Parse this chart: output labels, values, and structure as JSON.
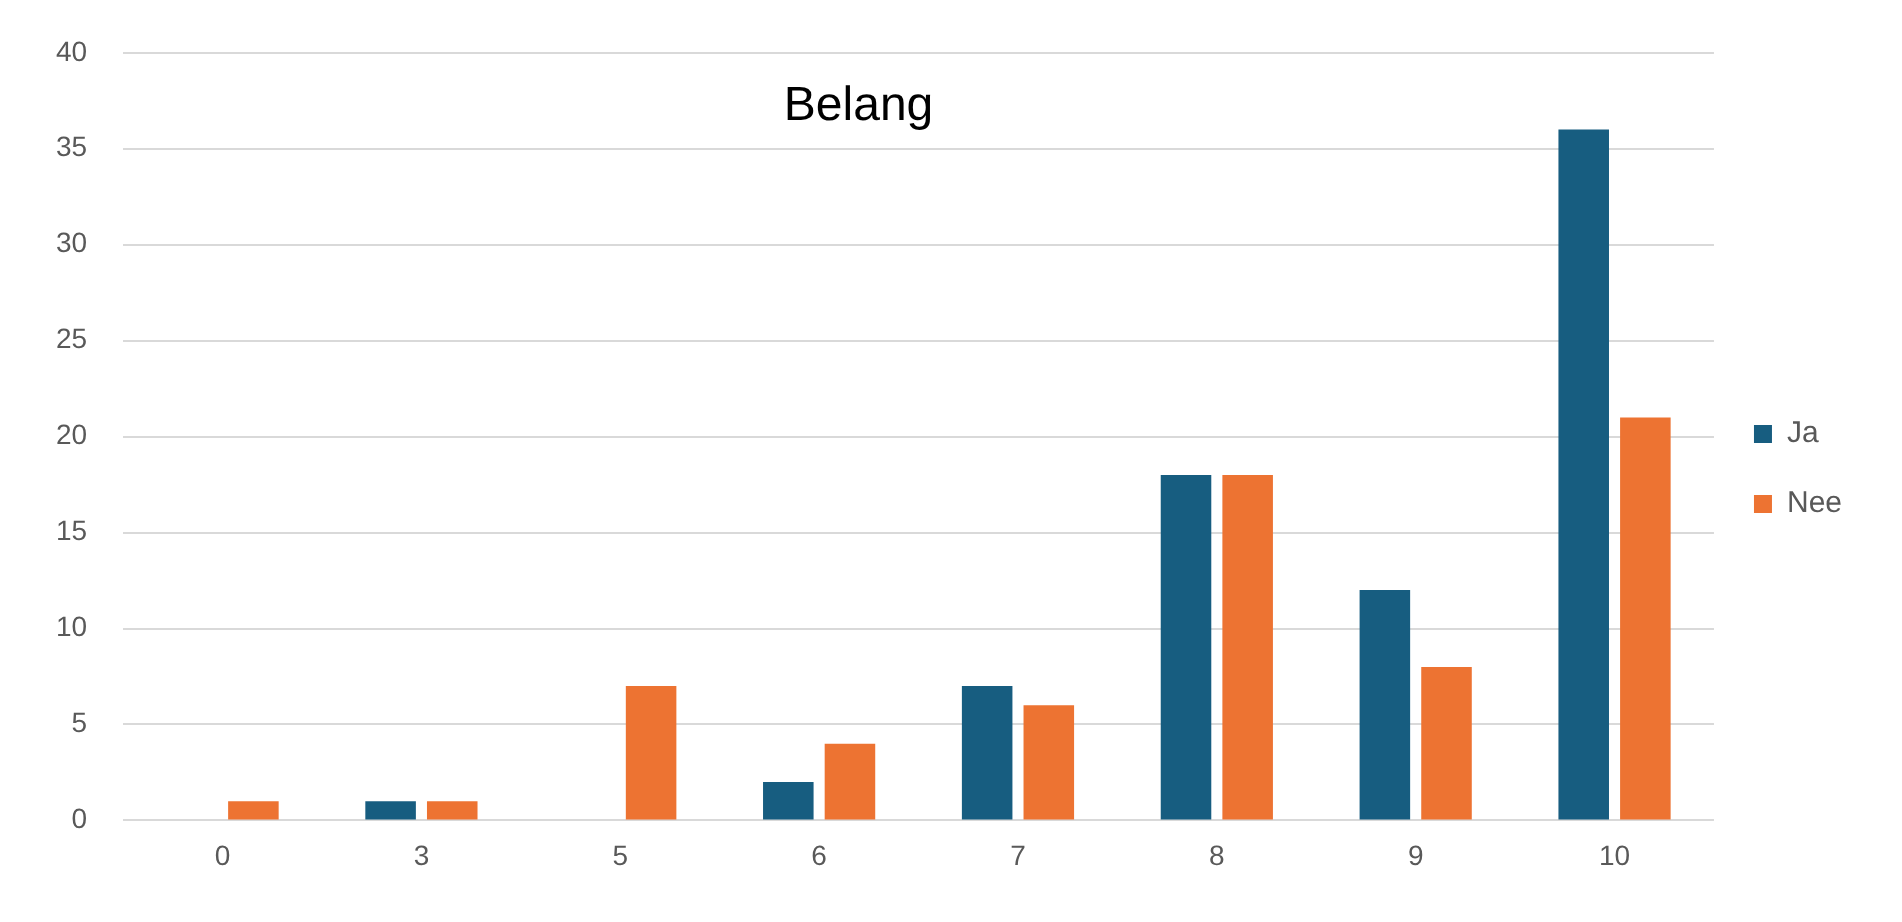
{
  "chart_data": {
    "type": "bar",
    "title": "Belang",
    "categories": [
      "0",
      "3",
      "5",
      "6",
      "7",
      "8",
      "9",
      "10"
    ],
    "series": [
      {
        "name": "Ja",
        "color": "#175d80",
        "values": [
          0,
          1,
          0,
          2,
          7,
          18,
          12,
          36
        ]
      },
      {
        "name": "Nee",
        "color": "#ed7332",
        "values": [
          1,
          1,
          7,
          4,
          6,
          18,
          8,
          21
        ]
      }
    ],
    "ylim": [
      0,
      40
    ],
    "yticks": [
      0,
      5,
      10,
      15,
      20,
      25,
      30,
      35,
      40
    ],
    "grid": "y",
    "legend": "right"
  }
}
